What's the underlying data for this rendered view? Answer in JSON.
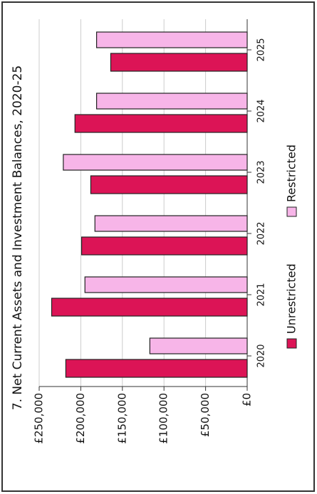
{
  "chart_data": {
    "type": "bar",
    "title": "7. Net Current Assets and Investment Balances, 2020-25",
    "categories": [
      "2020",
      "2021",
      "2022",
      "2023",
      "2024",
      "2025"
    ],
    "series": [
      {
        "name": "Unrestricted",
        "color": "#dc1456",
        "values": [
          218000,
          235000,
          199000,
          188000,
          207000,
          164000
        ]
      },
      {
        "name": "Restricted",
        "color": "#f7b5e8",
        "values": [
          117000,
          195000,
          183000,
          221000,
          181000,
          181000
        ]
      }
    ],
    "ylim": [
      0,
      250000
    ],
    "yticks": [
      {
        "value": 0,
        "label": "£0"
      },
      {
        "value": 50000,
        "label": "£50,000"
      },
      {
        "value": 100000,
        "label": "£100,000"
      },
      {
        "value": 150000,
        "label": "£150,000"
      },
      {
        "value": 200000,
        "label": "£200,000"
      },
      {
        "value": 250000,
        "label": "£250,000"
      }
    ],
    "grid": true,
    "legend": "bottom",
    "rotated": true
  }
}
